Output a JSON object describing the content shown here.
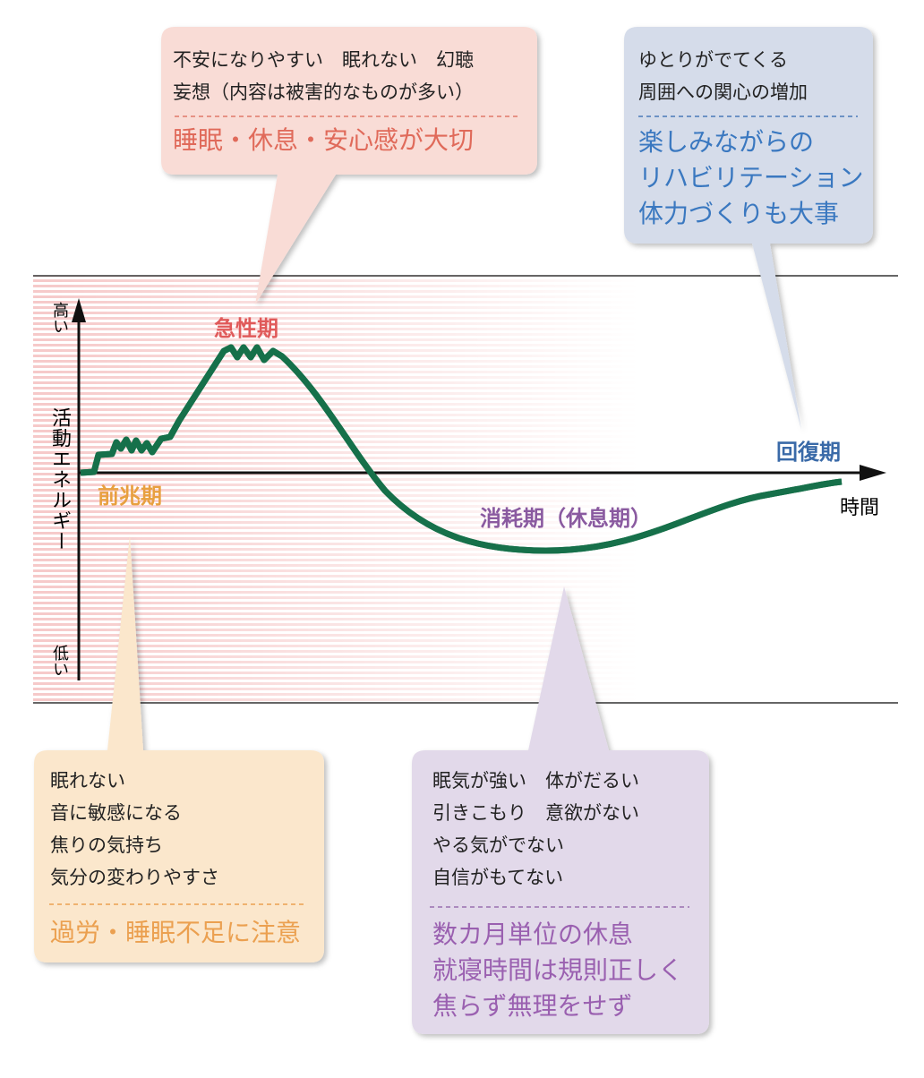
{
  "axis": {
    "y_high": "高い",
    "y_label": "活動エネルギー",
    "y_low": "低い",
    "x_label": "時間"
  },
  "phases": {
    "prodromal": "前兆期",
    "acute": "急性期",
    "exhaustion": "消耗期（休息期）",
    "recovery": "回復期"
  },
  "callouts": {
    "acute": {
      "lines": [
        "不安になりやすい　眠れない　幻聴",
        "妄想（内容は被害的なものが多い）"
      ],
      "advice": [
        "睡眠・休息・安心感が大切"
      ]
    },
    "recovery": {
      "lines": [
        "ゆとりがでてくる",
        "周囲への関心の増加"
      ],
      "advice": [
        "楽しみながらの",
        "リハビリテーション",
        "体力づくりも大事"
      ]
    },
    "prodromal": {
      "lines": [
        "眠れない",
        "音に敏感になる",
        "焦りの気持ち",
        "気分の変わりやすさ"
      ],
      "advice": [
        "過労・睡眠不足に注意"
      ]
    },
    "exhaustion": {
      "lines": [
        "眠気が強い　体がだるい",
        "引きこもり　意欲がない",
        "やる気がでない",
        "自信がもてない"
      ],
      "advice": [
        "数カ月単位の休息",
        "就寝時間は規則正しく",
        "焦らず無理をせず"
      ]
    }
  }
}
